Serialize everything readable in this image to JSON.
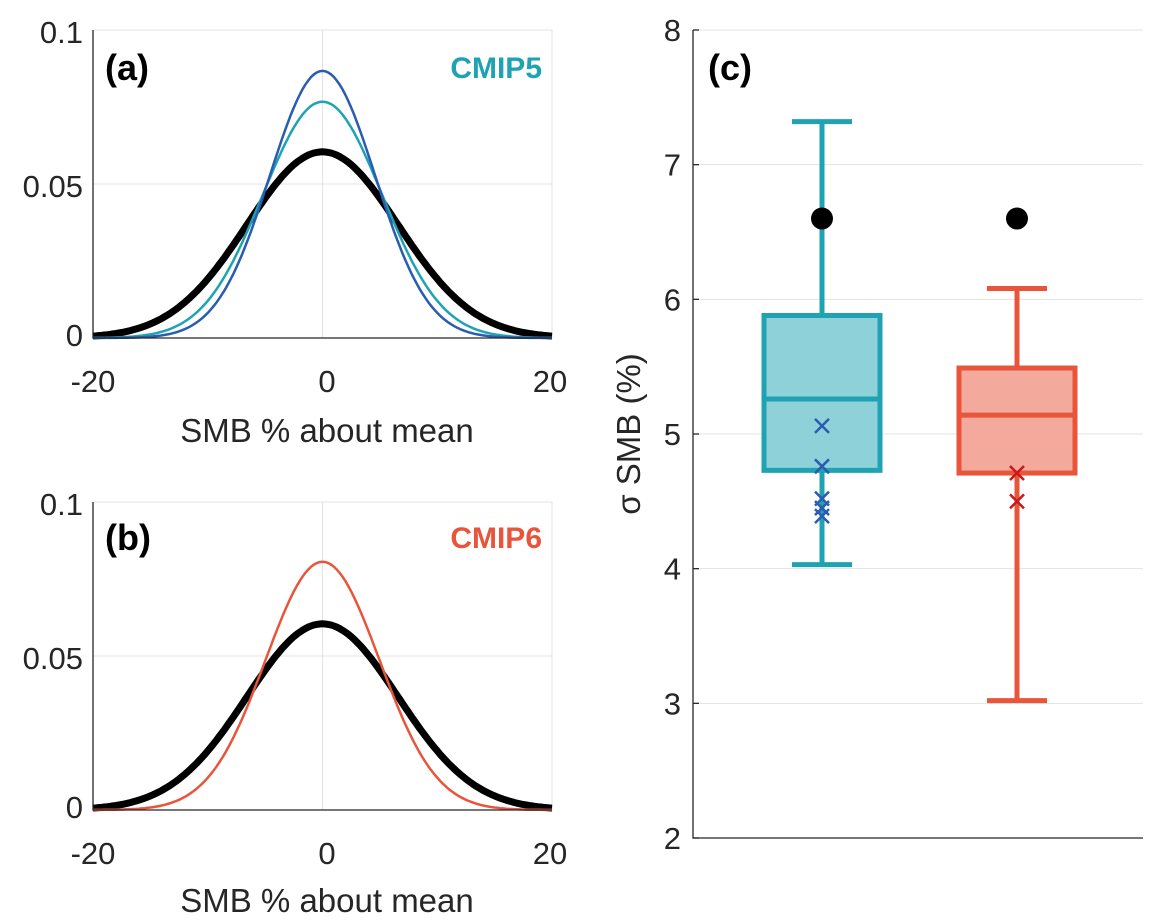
{
  "chart_data": [
    {
      "type": "line",
      "panel_label": "(a)",
      "annotation": "CMIP5",
      "annotation_color": "#1fa3b3",
      "xlabel": "SMB % about mean",
      "xlim": [
        -20,
        20
      ],
      "ylim": [
        0,
        0.1
      ],
      "xticks": [
        "-20",
        "0",
        "20"
      ],
      "yticks": [
        "0",
        "0.05",
        "0.1"
      ],
      "grid": true,
      "curve": "normal pdf, mean 0",
      "series": [
        {
          "std": 6.6,
          "peak": 0.06,
          "color": "#000000",
          "width": 7
        },
        {
          "std": 5.2,
          "peak": 0.077,
          "color": "#1fa3b3",
          "width": 2.5
        },
        {
          "std": 4.6,
          "peak": 0.087,
          "color": "#2a5cb0",
          "width": 2.5
        }
      ]
    },
    {
      "type": "line",
      "panel_label": "(b)",
      "annotation": "CMIP6",
      "annotation_color": "#e8553b",
      "xlabel": "SMB % about mean",
      "xlim": [
        -20,
        20
      ],
      "ylim": [
        0,
        0.1
      ],
      "xticks": [
        "-20",
        "0",
        "20"
      ],
      "yticks": [
        "0",
        "0.05",
        "0.1"
      ],
      "grid": true,
      "curve": "normal pdf, mean 0",
      "series": [
        {
          "std": 6.6,
          "peak": 0.06,
          "color": "#000000",
          "width": 7
        },
        {
          "std": 4.95,
          "peak": 0.081,
          "color": "#e8553b",
          "width": 2.5
        }
      ]
    },
    {
      "type": "box",
      "panel_label": "(c)",
      "ylabel": "σ SMB (%)",
      "ylim": [
        2,
        8
      ],
      "yticks": [
        "2",
        "3",
        "4",
        "5",
        "6",
        "7",
        "8"
      ],
      "grid": true,
      "boxes": [
        {
          "whisker_low": 4.03,
          "q1": 4.73,
          "median": 5.26,
          "q3": 5.88,
          "whisker_high": 7.32,
          "color": "#1fa3b3",
          "fill": "#8ed1d9",
          "reference_dot": 6.6,
          "markers": [
            5.06,
            4.76,
            4.52,
            4.45,
            4.39
          ],
          "marker_color": "#2a5cb0"
        },
        {
          "whisker_low": 3.02,
          "q1": 4.71,
          "median": 5.14,
          "q3": 5.49,
          "whisker_high": 6.08,
          "color": "#e8553b",
          "fill": "#f3a99c",
          "reference_dot": 6.6,
          "markers": [
            4.71,
            4.5
          ],
          "marker_color": "#c8191b"
        }
      ]
    }
  ]
}
